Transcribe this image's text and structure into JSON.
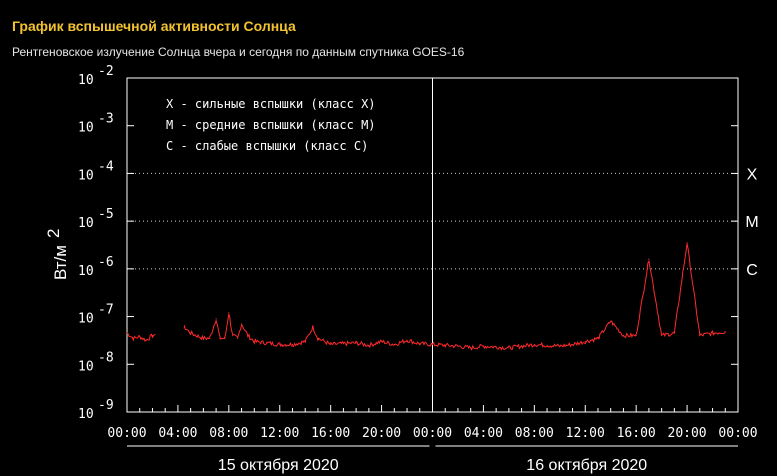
{
  "header": {
    "title": "График вспышечной активности Солнца",
    "subtitle": "Рентгеновское излучение Солнца вчера и сегодня по данным спутника GOES-16"
  },
  "colors": {
    "background": "#000000",
    "title": "#f2c230",
    "series": "#ff2a2a",
    "axes": "#ffffff"
  },
  "chart_data": {
    "type": "line",
    "title": "График вспышечной активности Солнца",
    "ylabel": "Вт/м",
    "ylabel_exp": "2",
    "yscale": "log",
    "ylim": [
      1e-09,
      0.01
    ],
    "y_ticks": [
      {
        "base": "10",
        "exp": "-2"
      },
      {
        "base": "10",
        "exp": "-3"
      },
      {
        "base": "10",
        "exp": "-4"
      },
      {
        "base": "10",
        "exp": "-5"
      },
      {
        "base": "10",
        "exp": "-6"
      },
      {
        "base": "10",
        "exp": "-7"
      },
      {
        "base": "10",
        "exp": "-8"
      },
      {
        "base": "10",
        "exp": "-9"
      }
    ],
    "x_tick_labels": [
      "00:00",
      "04:00",
      "08:00",
      "12:00",
      "16:00",
      "20:00",
      "00:00",
      "04:00",
      "08:00",
      "12:00",
      "16:00",
      "20:00",
      "00:00"
    ],
    "x_range_hours": [
      0,
      48
    ],
    "day_labels": [
      "15 октября 2020",
      "16 октября 2020"
    ],
    "class_lines": [
      {
        "label": "X",
        "value": 0.0001
      },
      {
        "label": "M",
        "value": 1e-05
      },
      {
        "label": "C",
        "value": 1e-06
      }
    ],
    "legend": [
      "X - сильные вспышки (класс X)",
      "M - средние вспышки (класс M)",
      "C - слабые вспышки (класс C)"
    ],
    "grid": "dotted horizontal lines at class thresholds",
    "series": [
      {
        "x_hours": [
          0,
          0.5,
          1,
          1.5,
          2,
          2.2,
          4,
          4.5,
          5,
          6,
          6.5,
          7,
          7.3,
          7.7,
          8,
          8.3,
          8.7,
          9,
          9.5,
          10,
          11,
          12,
          13,
          14,
          14.6,
          15,
          16,
          17,
          18,
          19,
          20,
          21,
          22,
          23,
          24,
          25,
          26,
          27,
          28,
          29,
          30,
          31,
          32,
          33,
          34,
          35,
          36,
          37,
          38,
          39,
          40,
          41,
          42,
          43,
          44,
          45,
          46,
          47
        ],
        "y_hours_note": "",
        "values": [
          4.5e-08,
          3.5e-08,
          3.8e-08,
          3.2e-08,
          4e-08,
          4.2e-08,
          null,
          6e-08,
          4.5e-08,
          3.5e-08,
          3.5e-08,
          9e-08,
          3.5e-08,
          3.5e-08,
          1.2e-07,
          4e-08,
          3.5e-08,
          7e-08,
          4e-08,
          3e-08,
          2.8e-08,
          2.6e-08,
          2.6e-08,
          3e-08,
          6e-08,
          3.5e-08,
          2.6e-08,
          2.7e-08,
          2.8e-08,
          2.5e-08,
          3e-08,
          2.6e-08,
          3.2e-08,
          2.7e-08,
          2.6e-08,
          2.5e-08,
          2.4e-08,
          2.2e-08,
          2.4e-08,
          2.3e-08,
          2.2e-08,
          2.4e-08,
          2.6e-08,
          2.5e-08,
          2.4e-08,
          2.6e-08,
          3e-08,
          3.5e-08,
          8e-08,
          4e-08,
          4e-08,
          1.6e-06,
          4e-08,
          4.5e-08,
          3.5e-06,
          4e-08,
          4.5e-08,
          4.8e-08
        ]
      }
    ]
  }
}
